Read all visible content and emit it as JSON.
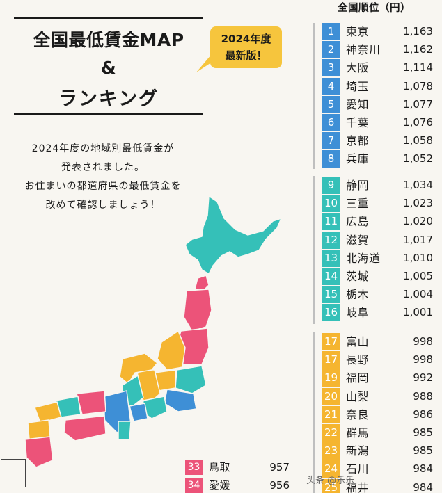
{
  "title": {
    "line1": "全国最低賃金MAP",
    "line2": "&",
    "line3": "ランキング"
  },
  "badge": {
    "line1": "2024年度",
    "line2": "最新版！"
  },
  "intro": [
    "2024年度の地域別最低賃金が",
    "発表されました。",
    "お住まいの都道府県の最低賃金を",
    "改めて確認しましょう！"
  ],
  "ranking_header": "全国順位（円）",
  "colors": {
    "blue": "#3e8fd6",
    "teal": "#35c0b8",
    "yellow": "#f5b530",
    "pink": "#ec5379",
    "background": "#f8f6f1"
  },
  "chart_data": {
    "type": "table",
    "columns": [
      "rank",
      "prefecture",
      "wage"
    ],
    "rows": [
      {
        "rank": "1",
        "prefecture": "東京",
        "wage": "1,163",
        "tier": "blue"
      },
      {
        "rank": "2",
        "prefecture": "神奈川",
        "wage": "1,162",
        "tier": "blue"
      },
      {
        "rank": "3",
        "prefecture": "大阪",
        "wage": "1,114",
        "tier": "blue"
      },
      {
        "rank": "4",
        "prefecture": "埼玉",
        "wage": "1,078",
        "tier": "blue"
      },
      {
        "rank": "5",
        "prefecture": "愛知",
        "wage": "1,077",
        "tier": "blue"
      },
      {
        "rank": "6",
        "prefecture": "千葉",
        "wage": "1,076",
        "tier": "blue"
      },
      {
        "rank": "7",
        "prefecture": "京都",
        "wage": "1,058",
        "tier": "blue"
      },
      {
        "rank": "8",
        "prefecture": "兵庫",
        "wage": "1,052",
        "tier": "blue"
      },
      {
        "rank": "9",
        "prefecture": "静岡",
        "wage": "1,034",
        "tier": "teal"
      },
      {
        "rank": "10",
        "prefecture": "三重",
        "wage": "1,023",
        "tier": "teal"
      },
      {
        "rank": "11",
        "prefecture": "広島",
        "wage": "1,020",
        "tier": "teal"
      },
      {
        "rank": "12",
        "prefecture": "滋賀",
        "wage": "1,017",
        "tier": "teal"
      },
      {
        "rank": "13",
        "prefecture": "北海道",
        "wage": "1,010",
        "tier": "teal"
      },
      {
        "rank": "14",
        "prefecture": "茨城",
        "wage": "1,005",
        "tier": "teal"
      },
      {
        "rank": "15",
        "prefecture": "栃木",
        "wage": "1,004",
        "tier": "teal"
      },
      {
        "rank": "16",
        "prefecture": "岐阜",
        "wage": "1,001",
        "tier": "teal"
      },
      {
        "rank": "17",
        "prefecture": "富山",
        "wage": "998",
        "tier": "yellow"
      },
      {
        "rank": "17",
        "prefecture": "長野",
        "wage": "998",
        "tier": "yellow"
      },
      {
        "rank": "19",
        "prefecture": "福岡",
        "wage": "992",
        "tier": "yellow"
      },
      {
        "rank": "20",
        "prefecture": "山梨",
        "wage": "988",
        "tier": "yellow"
      },
      {
        "rank": "21",
        "prefecture": "奈良",
        "wage": "986",
        "tier": "yellow"
      },
      {
        "rank": "22",
        "prefecture": "群馬",
        "wage": "985",
        "tier": "yellow"
      },
      {
        "rank": "23",
        "prefecture": "新潟",
        "wage": "985",
        "tier": "yellow"
      },
      {
        "rank": "24",
        "prefecture": "石川",
        "wage": "984",
        "tier": "yellow"
      },
      {
        "rank": "25",
        "prefecture": "福井",
        "wage": "984",
        "tier": "yellow"
      }
    ],
    "bottom_rows": [
      {
        "rank": "33",
        "prefecture": "鳥取",
        "wage": "957",
        "tier": "pink"
      },
      {
        "rank": "34",
        "prefecture": "愛媛",
        "wage": "956",
        "tier": "pink"
      }
    ]
  },
  "watermark": "头条 @乐乐"
}
